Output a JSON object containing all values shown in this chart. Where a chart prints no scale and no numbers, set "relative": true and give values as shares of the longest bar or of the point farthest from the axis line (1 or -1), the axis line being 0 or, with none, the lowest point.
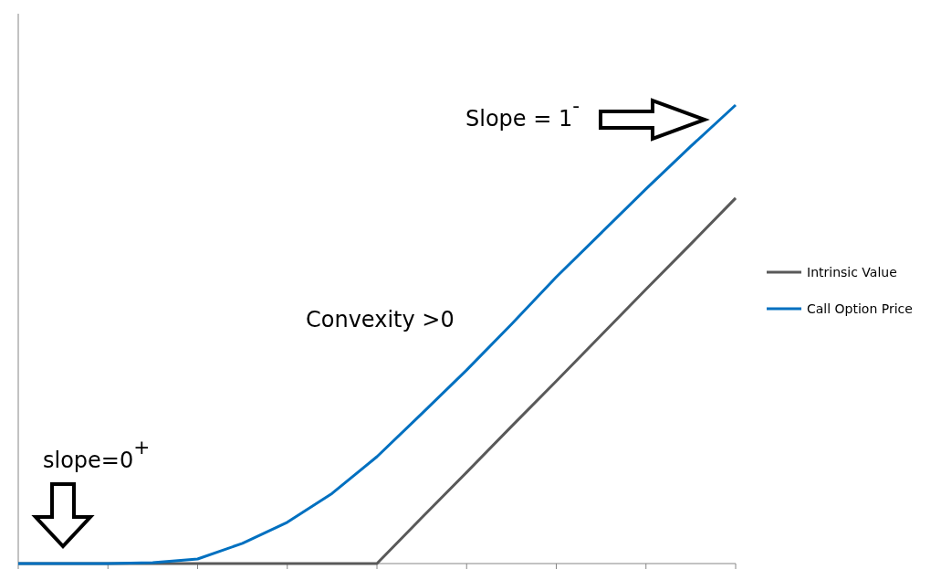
{
  "chart_data": {
    "type": "line",
    "relative": true,
    "grid": false,
    "legend": "right",
    "marker": "none",
    "line_style": "solid",
    "categories": [
      null,
      null,
      null,
      null,
      null,
      null,
      null,
      null,
      null,
      null,
      null,
      null,
      null,
      null,
      null,
      null,
      null
    ],
    "series": [
      {
        "name": "Intrinsic Value",
        "color": "#595959",
        "values": [
          0,
          0,
          0,
          0,
          0,
          0,
          0,
          0,
          0,
          0.1,
          0.199,
          0.299,
          0.398,
          0.498,
          0.598,
          0.697,
          0.797
        ]
      },
      {
        "name": "Call Option Price",
        "color": "#0070c0",
        "values": [
          0,
          0,
          0,
          0.002,
          0.01,
          0.044,
          0.09,
          0.153,
          0.233,
          0.327,
          0.422,
          0.522,
          0.625,
          0.721,
          0.817,
          0.91,
          1
        ]
      }
    ],
    "annotations": [
      "Slope = 1$^{-}$",
      "Convexity >0",
      "slope=0$^{+}$"
    ]
  }
}
